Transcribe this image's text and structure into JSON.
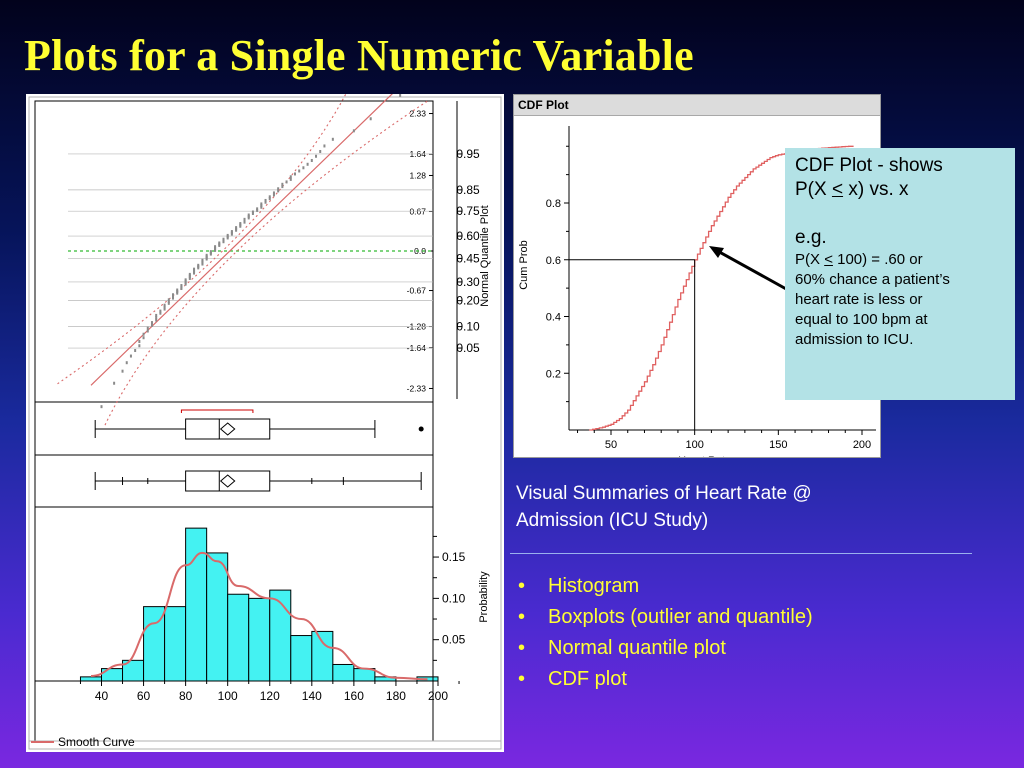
{
  "title": "Plots for a Single Numeric Variable",
  "cdf_panel_title": "CDF Plot",
  "callout": {
    "line1": "CDF Plot - shows",
    "line2_pre": "P(X ",
    "line2_sym": "<",
    "line2_post": " x) vs. x",
    "eg": "e.g.",
    "ex_pre": "P(X ",
    "ex_sym": "<",
    "ex_post": " 100) = .60 or",
    "ex_rest": [
      "60% chance a patient’s",
      "heart rate is less or",
      "equal to 100 bpm at",
      "admission to ICU."
    ]
  },
  "summary": [
    "Visual Summaries of Heart Rate @",
    "Admission (ICU Study)"
  ],
  "bullets": [
    "Histogram",
    "Boxplots (outlier and quantile)",
    "Normal quantile plot",
    "CDF plot"
  ],
  "bullet_symbol": "•",
  "colors": {
    "title": "#ffff33",
    "bullets": "#ffff33",
    "callout_bg": "#b3e2e6",
    "histogram_fill": "#44f2f2",
    "curve": "#d96a6a",
    "cdf_line": "#e06060",
    "reference_line": "#33bb33"
  },
  "chart_data": [
    {
      "type": "bar",
      "name": "histogram",
      "xlabel": "",
      "ylabel": "Probability",
      "x_ticks": [
        40,
        60,
        80,
        100,
        120,
        140,
        160,
        180,
        200
      ],
      "y_ticks": [
        "0.05",
        "0.10",
        "0.15"
      ],
      "bin_width": 10,
      "bins": [
        {
          "x0": 30,
          "x1": 40,
          "p": 0.005
        },
        {
          "x0": 40,
          "x1": 50,
          "p": 0.015
        },
        {
          "x0": 50,
          "x1": 60,
          "p": 0.025
        },
        {
          "x0": 60,
          "x1": 70,
          "p": 0.09
        },
        {
          "x0": 70,
          "x1": 80,
          "p": 0.09
        },
        {
          "x0": 80,
          "x1": 90,
          "p": 0.185
        },
        {
          "x0": 90,
          "x1": 100,
          "p": 0.155
        },
        {
          "x0": 100,
          "x1": 110,
          "p": 0.105
        },
        {
          "x0": 110,
          "x1": 120,
          "p": 0.1
        },
        {
          "x0": 120,
          "x1": 130,
          "p": 0.11
        },
        {
          "x0": 130,
          "x1": 140,
          "p": 0.055
        },
        {
          "x0": 140,
          "x1": 150,
          "p": 0.06
        },
        {
          "x0": 150,
          "x1": 160,
          "p": 0.02
        },
        {
          "x0": 160,
          "x1": 170,
          "p": 0.015
        },
        {
          "x0": 170,
          "x1": 180,
          "p": 0.005
        },
        {
          "x0": 180,
          "x1": 190,
          "p": 0.0
        },
        {
          "x0": 190,
          "x1": 200,
          "p": 0.005
        }
      ],
      "smooth_curve": {
        "name": "Smooth Curve",
        "points": [
          [
            35,
            0.006
          ],
          [
            50,
            0.02
          ],
          [
            65,
            0.07
          ],
          [
            80,
            0.14
          ],
          [
            88,
            0.155
          ],
          [
            95,
            0.145
          ],
          [
            105,
            0.115
          ],
          [
            120,
            0.1
          ],
          [
            135,
            0.075
          ],
          [
            150,
            0.04
          ],
          [
            165,
            0.015
          ],
          [
            180,
            0.004
          ],
          [
            195,
            0.002
          ]
        ]
      }
    },
    {
      "type": "boxplot",
      "name": "outlier boxplot",
      "whisker_low": 37,
      "q1": 80,
      "median": 96,
      "mean": 100,
      "q3": 120,
      "whisker_high": 170,
      "outliers": [
        192
      ],
      "shortest_half": [
        78,
        112
      ]
    },
    {
      "type": "boxplot",
      "name": "quantile boxplot",
      "min": 37,
      "p2_5": 50,
      "p10": 62,
      "q1": 80,
      "median": 96,
      "mean": 100,
      "q3": 120,
      "p90": 140,
      "p97_5": 155,
      "max": 192
    },
    {
      "type": "scatter",
      "name": "normal quantile plot",
      "ylabel": "Normal Quantile Plot",
      "z_ticks": [
        "2.33",
        "1.64",
        "1.28",
        "0.67",
        "0.0",
        "-0.67",
        "-1.28",
        "-1.64",
        "-2.33"
      ],
      "prob_ticks": [
        "0.95",
        "0.85",
        "0.75",
        "0.60",
        "0.45",
        "0.30",
        "0.20",
        "0.10",
        "0.05"
      ],
      "zlim": [
        -2.9,
        3.1
      ],
      "fit_line": {
        "mean": 101,
        "sd": 29
      },
      "points_note": "sorted heart rates vs normal quantiles"
    },
    {
      "type": "line",
      "name": "cdf",
      "xlabel": "Heart Rate",
      "ylabel": "Cum Prob",
      "x_ticks": [
        50,
        100,
        150,
        200
      ],
      "y_ticks": [
        "0.2",
        "0.4",
        "0.6",
        "0.8"
      ],
      "xlim": [
        30,
        200
      ],
      "ylim": [
        0,
        1.05
      ],
      "reference_point": {
        "x": 100,
        "y": 0.6
      },
      "points": [
        [
          37,
          0.0
        ],
        [
          45,
          0.01
        ],
        [
          50,
          0.02
        ],
        [
          55,
          0.04
        ],
        [
          60,
          0.07
        ],
        [
          65,
          0.12
        ],
        [
          70,
          0.17
        ],
        [
          75,
          0.23
        ],
        [
          80,
          0.3
        ],
        [
          85,
          0.38
        ],
        [
          90,
          0.46
        ],
        [
          95,
          0.53
        ],
        [
          100,
          0.6
        ],
        [
          105,
          0.66
        ],
        [
          110,
          0.72
        ],
        [
          115,
          0.77
        ],
        [
          120,
          0.82
        ],
        [
          125,
          0.86
        ],
        [
          130,
          0.89
        ],
        [
          135,
          0.92
        ],
        [
          140,
          0.94
        ],
        [
          145,
          0.96
        ],
        [
          150,
          0.97
        ],
        [
          160,
          0.98
        ],
        [
          170,
          0.99
        ],
        [
          180,
          0.995
        ],
        [
          192,
          1.0
        ]
      ]
    }
  ]
}
